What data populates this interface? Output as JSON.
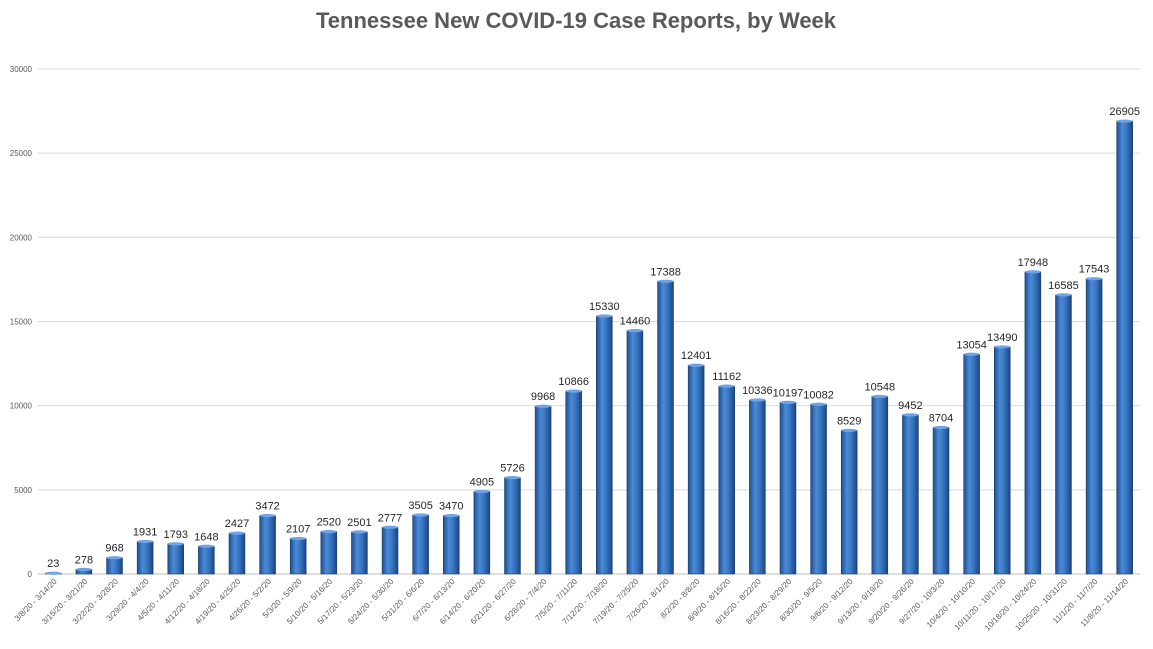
{
  "chart_data": {
    "type": "bar",
    "title": "Tennessee New COVID-19 Case Reports, by Week",
    "xlabel": "",
    "ylabel": "",
    "ylim": [
      0,
      30000
    ],
    "yticks": [
      0,
      5000,
      10000,
      15000,
      20000,
      25000,
      30000
    ],
    "grid": true,
    "legend": "none",
    "bar_color": "#2e6db4",
    "categories": [
      "3/8/20 - 3/14/20",
      "3/15/20 - 3/21/20",
      "3/22/20 - 3/28/20",
      "3/29/20 - 4/4/20",
      "4/5/20 - 4/11/20",
      "4/12/20 - 4/18/20",
      "4/19/20 - 4/25/20",
      "4/26/20 - 5/2/20",
      "5/3/20 - 5/9/20",
      "5/10/20 - 5/16/20",
      "5/17/20 - 5/23/20",
      "5/24/20 - 5/30/20",
      "5/31/20 - 6/6/20",
      "6/7/20 - 6/13/20",
      "6/14/20 - 6/20/20",
      "6/21/20 - 6/27/20",
      "6/28/20 - 7/4/20",
      "7/5/20 - 7/11/20",
      "7/12/20 - 7/18/20",
      "7/19/20 - 7/25/20",
      "7/26/20 - 8/1/20",
      "8/2/20 - 8/8/20",
      "8/9/20 - 8/15/20",
      "8/16/20 - 8/22/20",
      "8/23/20 - 8/29/20",
      "8/30/20 - 9/5/20",
      "9/6/20 - 9/12/20",
      "9/13/20 - 9/19/20",
      "9/20/20 - 9/26/20",
      "9/27/20 - 10/3/20",
      "10/4/20 - 10/10/20",
      "10/11/20 - 10/17/20",
      "10/18/20 - 10/24/20",
      "10/25/20 - 10/31/20",
      "11/1/20 - 11/7/20",
      "11/8/20 - 11/14/20"
    ],
    "values": [
      23,
      278,
      968,
      1931,
      1793,
      1648,
      2427,
      3472,
      2107,
      2520,
      2501,
      2777,
      3505,
      3470,
      4905,
      5726,
      9968,
      10866,
      15330,
      14460,
      17388,
      12401,
      11162,
      10336,
      10197,
      10082,
      8529,
      10548,
      9452,
      8704,
      13054,
      13490,
      17948,
      16585,
      17543,
      26905
    ]
  }
}
